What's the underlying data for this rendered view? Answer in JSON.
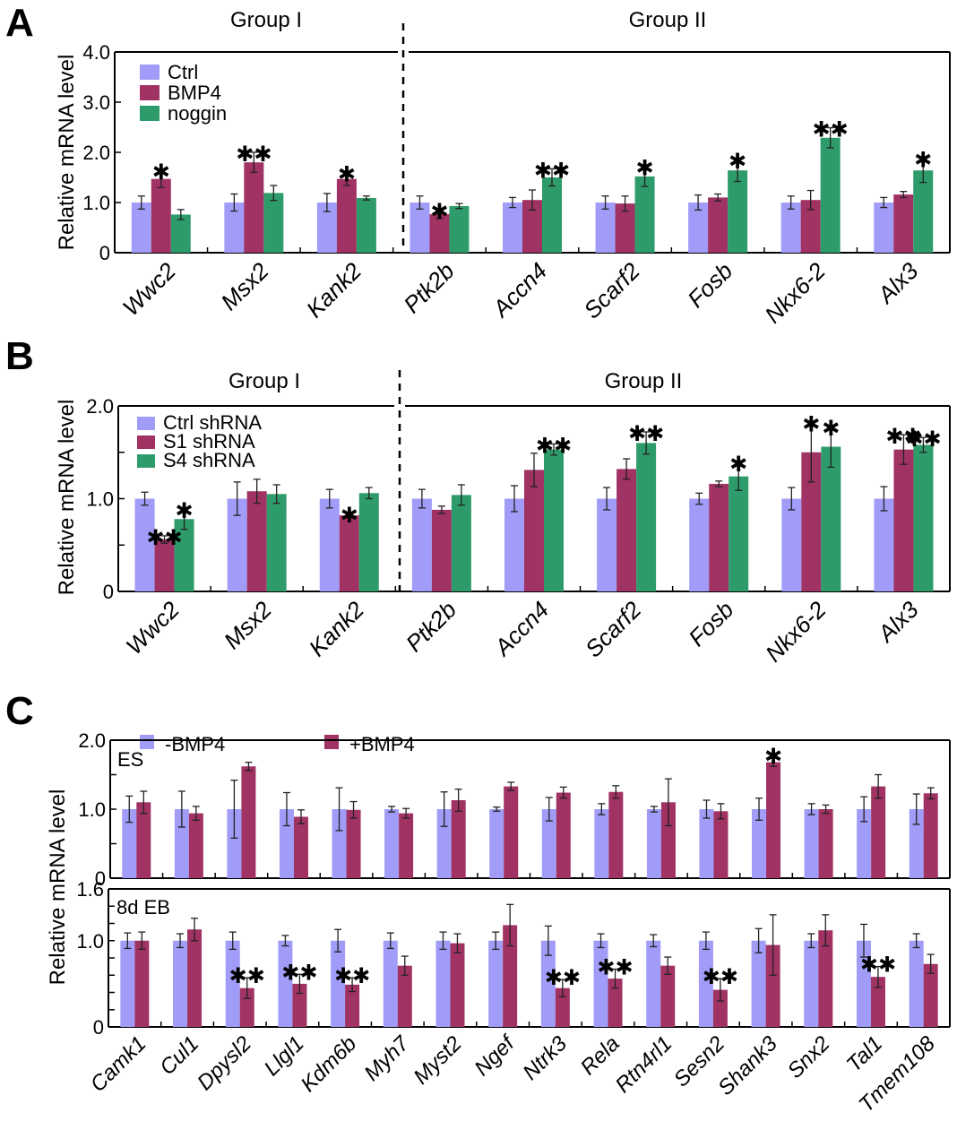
{
  "figure": {
    "panels": [
      "A",
      "B",
      "C"
    ]
  },
  "colors": {
    "ctrl": "#a09cf7",
    "bmp4": "#a03264",
    "noggin": "#2e9c6a"
  },
  "chart_data": [
    {
      "id": "A",
      "type": "bar",
      "panel_label": "A",
      "ylabel": "Relative mRNA level",
      "ylim": [
        0,
        4.0
      ],
      "yticks": [
        0,
        1.0,
        2.0,
        3.0,
        4.0
      ],
      "ytick_labels": [
        "0",
        "1.0",
        "2.0",
        "3.0",
        "4.0"
      ],
      "groups": [
        {
          "label": "Group I",
          "categories": [
            "Wwc2",
            "Msx2",
            "Kank2"
          ]
        },
        {
          "label": "Group II",
          "categories": [
            "Ptk2b",
            "Accn4",
            "Scarf2",
            "Fosb",
            "Nkx6-2",
            "Alx3"
          ]
        }
      ],
      "categories": [
        "Wwc2",
        "Msx2",
        "Kank2",
        "Ptk2b",
        "Accn4",
        "Scarf2",
        "Fosb",
        "Nkx6-2",
        "Alx3"
      ],
      "legend": {
        "placement": "top-left",
        "entries": [
          "Ctrl",
          "BMP4",
          "noggin"
        ]
      },
      "series": [
        {
          "name": "Ctrl",
          "color_key": "ctrl",
          "values": [
            1.0,
            1.0,
            1.0,
            1.0,
            1.0,
            1.0,
            1.0,
            1.0,
            1.0
          ],
          "errors": [
            0.13,
            0.17,
            0.18,
            0.13,
            0.1,
            0.13,
            0.15,
            0.13,
            0.1
          ]
        },
        {
          "name": "BMP4",
          "color_key": "bmp4",
          "values": [
            1.47,
            1.8,
            1.47,
            0.77,
            1.05,
            0.98,
            1.1,
            1.05,
            1.16
          ],
          "errors": [
            0.17,
            0.2,
            0.13,
            0.09,
            0.2,
            0.15,
            0.07,
            0.19,
            0.06
          ]
        },
        {
          "name": "noggin",
          "color_key": "noggin",
          "values": [
            0.76,
            1.19,
            1.09,
            0.93,
            1.5,
            1.52,
            1.64,
            2.29,
            1.64
          ],
          "errors": [
            0.1,
            0.15,
            0.04,
            0.05,
            0.17,
            0.2,
            0.22,
            0.2,
            0.24
          ]
        }
      ],
      "annotations": [
        {
          "category": "Wwc2",
          "series": "BMP4",
          "text": "*"
        },
        {
          "category": "Msx2",
          "series": "BMP4",
          "text": "**"
        },
        {
          "category": "Kank2",
          "series": "BMP4",
          "text": "*"
        },
        {
          "category": "Ptk2b",
          "series": "BMP4",
          "text": "*"
        },
        {
          "category": "Accn4",
          "series": "noggin",
          "text": "**"
        },
        {
          "category": "Scarf2",
          "series": "noggin",
          "text": "*"
        },
        {
          "category": "Fosb",
          "series": "noggin",
          "text": "*"
        },
        {
          "category": "Nkx6-2",
          "series": "noggin",
          "text": "**"
        },
        {
          "category": "Alx3",
          "series": "noggin",
          "text": "*"
        }
      ]
    },
    {
      "id": "B",
      "type": "bar",
      "panel_label": "B",
      "ylabel": "Relative mRNA level",
      "ylim": [
        0,
        2.0
      ],
      "yticks": [
        0,
        0.5,
        1.0,
        1.5,
        2.0
      ],
      "ytick_labels": [
        "0",
        "",
        "1.0",
        "",
        "2.0"
      ],
      "groups": [
        {
          "label": "Group I",
          "categories": [
            "Wwc2",
            "Msx2",
            "Kank2"
          ]
        },
        {
          "label": "Group II",
          "categories": [
            "Ptk2b",
            "Accn4",
            "Scarf2",
            "Fosb",
            "Nkx6-2",
            "Alx3"
          ]
        }
      ],
      "categories": [
        "Wwc2",
        "Msx2",
        "Kank2",
        "Ptk2b",
        "Accn4",
        "Scarf2",
        "Fosb",
        "Nkx6-2",
        "Alx3"
      ],
      "legend": {
        "placement": "top-left",
        "entries": [
          "Ctrl shRNA",
          "S1 shRNA",
          "S4 shRNA"
        ]
      },
      "series": [
        {
          "name": "Ctrl shRNA",
          "color_key": "ctrl",
          "values": [
            1.0,
            1.0,
            1.0,
            1.0,
            1.0,
            1.0,
            1.0,
            1.0,
            1.0
          ],
          "errors": [
            0.07,
            0.18,
            0.1,
            0.1,
            0.14,
            0.12,
            0.06,
            0.12,
            0.13
          ]
        },
        {
          "name": "S1 shRNA",
          "color_key": "bmp4",
          "values": [
            0.56,
            1.08,
            0.82,
            0.88,
            1.31,
            1.32,
            1.16,
            1.5,
            1.53
          ]
        },
        {
          "name": "S4 shRNA",
          "color_key": "noggin",
          "values": [
            0.78,
            1.05,
            1.06,
            1.04,
            1.53,
            1.6,
            1.24,
            1.56,
            1.58
          ]
        }
      ],
      "series_errors": {
        "S1 shRNA": [
          0.04,
          0.13,
          0.02,
          0.04,
          0.18,
          0.11,
          0.03,
          0.32,
          0.16
        ],
        "S4 shRNA": [
          0.11,
          0.1,
          0.06,
          0.11,
          0.06,
          0.12,
          0.15,
          0.22,
          0.08
        ]
      },
      "annotations": [
        {
          "category": "Wwc2",
          "series": "S1 shRNA",
          "text": "**"
        },
        {
          "category": "Wwc2",
          "series": "S4 shRNA",
          "text": "*"
        },
        {
          "category": "Kank2",
          "series": "S1 shRNA",
          "text": "*"
        },
        {
          "category": "Accn4",
          "series": "S4 shRNA",
          "text": "**"
        },
        {
          "category": "Scarf2",
          "series": "S4 shRNA",
          "text": "**"
        },
        {
          "category": "Fosb",
          "series": "S4 shRNA",
          "text": "*"
        },
        {
          "category": "Nkx6-2",
          "series": "S1 shRNA",
          "text": "*"
        },
        {
          "category": "Nkx6-2",
          "series": "S4 shRNA",
          "text": "*"
        },
        {
          "category": "Alx3",
          "series": "S1 shRNA",
          "text": "**"
        },
        {
          "category": "Alx3",
          "series": "S4 shRNA",
          "text": "**"
        }
      ]
    },
    {
      "id": "C-ES",
      "type": "bar",
      "panel_label": "C",
      "subpanel_label": "ES",
      "ylabel": "Relative mRNA level",
      "ylim": [
        0,
        2.0
      ],
      "yticks": [
        0,
        0.5,
        1.0,
        1.5,
        2.0
      ],
      "ytick_labels": [
        "0",
        "",
        "1.0",
        "",
        "2.0"
      ],
      "categories": [
        "Camk1",
        "Cul1",
        "Dpysl2",
        "Llgl1",
        "Kdm6b",
        "Myh7",
        "Myst2",
        "Ngef",
        "Ntrk3",
        "Rela",
        "Rtn4rl1",
        "Sesn2",
        "Shank3",
        "Snx2",
        "Tal1",
        "Tmem108"
      ],
      "legend": {
        "placement": "top",
        "entries": [
          "-BMP4",
          "+BMP4"
        ]
      },
      "series": [
        {
          "name": "-BMP4",
          "color_key": "ctrl",
          "values": [
            1.0,
            1.0,
            1.0,
            1.0,
            1.0,
            1.0,
            1.0,
            1.0,
            1.0,
            1.0,
            1.0,
            1.0,
            1.0,
            1.0,
            1.0,
            1.0
          ],
          "errors": [
            0.19,
            0.26,
            0.42,
            0.24,
            0.31,
            0.04,
            0.25,
            0.03,
            0.17,
            0.08,
            0.04,
            0.13,
            0.16,
            0.08,
            0.18,
            0.22
          ]
        },
        {
          "name": "+BMP4",
          "color_key": "bmp4",
          "values": [
            1.1,
            0.94,
            1.62,
            0.89,
            0.99,
            0.94,
            1.13,
            1.33,
            1.24,
            1.25,
            1.1,
            0.97,
            1.68,
            1.0,
            1.33,
            1.23
          ]
        },
        {
          "name": "+BMP4 errors",
          "color_key": "bmp4",
          "values": [
            0.16,
            0.1,
            0.06,
            0.1,
            0.12,
            0.07,
            0.16,
            0.06,
            0.08,
            0.09,
            0.34,
            0.11,
            0.06,
            0.06,
            0.17,
            0.08
          ]
        }
      ],
      "annotations": [
        {
          "category": "Shank3",
          "series": "+BMP4",
          "text": "*"
        }
      ]
    },
    {
      "id": "C-EB",
      "type": "bar",
      "panel_label": "C",
      "subpanel_label": "8d EB",
      "ylabel": "Relative mRNA level",
      "ylim": [
        0,
        1.6
      ],
      "yticks": [
        0,
        0.2,
        0.4,
        0.6,
        0.8,
        1.0,
        1.2,
        1.4,
        1.6
      ],
      "ytick_labels": [
        "0",
        "",
        "",
        "",
        "",
        "1.0",
        "",
        "",
        "1.6"
      ],
      "categories": [
        "Camk1",
        "Cul1",
        "Dpysl2",
        "Llgl1",
        "Kdm6b",
        "Myh7",
        "Myst2",
        "Ngef",
        "Ntrk3",
        "Rela",
        "Rtn4rl1",
        "Sesn2",
        "Shank3",
        "Snx2",
        "Tal1",
        "Tmem108"
      ],
      "series": [
        {
          "name": "-BMP4",
          "color_key": "ctrl",
          "values": [
            1.0,
            1.0,
            1.0,
            1.0,
            1.0,
            1.0,
            1.0,
            1.0,
            1.0,
            1.0,
            1.0,
            1.0,
            1.0,
            1.0,
            1.0,
            1.0
          ],
          "errors": [
            0.09,
            0.08,
            0.1,
            0.06,
            0.13,
            0.09,
            0.1,
            0.1,
            0.17,
            0.08,
            0.07,
            0.1,
            0.14,
            0.08,
            0.19,
            0.08
          ]
        },
        {
          "name": "+BMP4",
          "color_key": "bmp4",
          "values": [
            1.0,
            1.13,
            0.45,
            0.5,
            0.49,
            0.71,
            0.97,
            1.18,
            0.45,
            0.56,
            0.71,
            0.43,
            0.95,
            1.12,
            0.58,
            0.73
          ]
        },
        {
          "name": "+BMP4 errors",
          "color_key": "bmp4",
          "values": [
            0.1,
            0.13,
            0.12,
            0.11,
            0.08,
            0.11,
            0.11,
            0.24,
            0.1,
            0.11,
            0.1,
            0.13,
            0.35,
            0.18,
            0.12,
            0.11
          ]
        }
      ],
      "annotations": [
        {
          "category": "Dpysl2",
          "series": "+BMP4",
          "text": "**"
        },
        {
          "category": "Llgl1",
          "series": "+BMP4",
          "text": "**"
        },
        {
          "category": "Kdm6b",
          "series": "+BMP4",
          "text": "**"
        },
        {
          "category": "Ntrk3",
          "series": "+BMP4",
          "text": "**"
        },
        {
          "category": "Rela",
          "series": "+BMP4",
          "text": "**"
        },
        {
          "category": "Sesn2",
          "series": "+BMP4",
          "text": "**"
        },
        {
          "category": "Tal1",
          "series": "+BMP4",
          "text": "**"
        }
      ]
    }
  ],
  "labels": {
    "panel_a": "A",
    "panel_b": "B",
    "panel_c": "C",
    "group_1": "Group I",
    "group_2": "Group II",
    "ylabel": "Relative mRNA level",
    "es": "ES",
    "eb": "8d EB",
    "legend_a": [
      "Ctrl",
      "BMP4",
      "noggin"
    ],
    "legend_b": [
      "Ctrl shRNA",
      "S1 shRNA",
      "S4 shRNA"
    ],
    "legend_c": [
      "-BMP4",
      "+BMP4"
    ]
  }
}
